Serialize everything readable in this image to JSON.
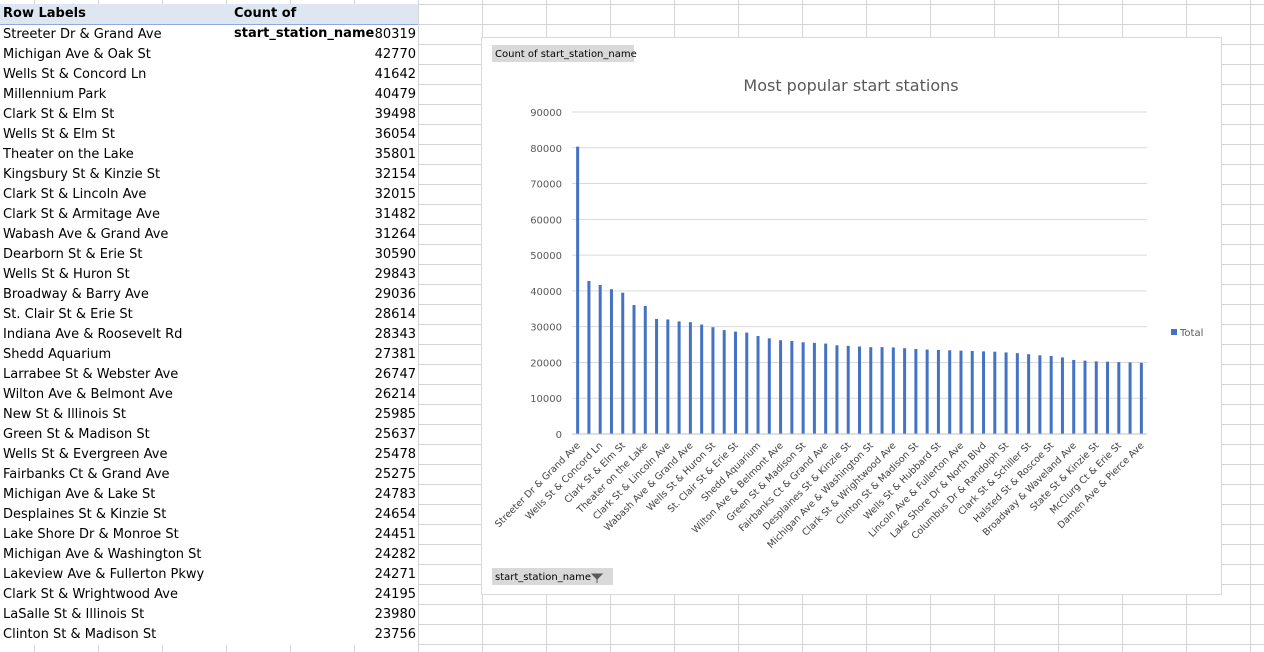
{
  "table": {
    "headers": [
      "Row Labels",
      "Count of start_station_name"
    ],
    "rows": [
      [
        "Streeter Dr & Grand Ave",
        80319
      ],
      [
        "Michigan Ave & Oak St",
        42770
      ],
      [
        "Wells St & Concord Ln",
        41642
      ],
      [
        "Millennium Park",
        40479
      ],
      [
        "Clark St & Elm St",
        39498
      ],
      [
        "Wells St & Elm St",
        36054
      ],
      [
        "Theater on the Lake",
        35801
      ],
      [
        "Kingsbury St & Kinzie St",
        32154
      ],
      [
        "Clark St & Lincoln Ave",
        32015
      ],
      [
        "Clark St & Armitage Ave",
        31482
      ],
      [
        "Wabash Ave & Grand Ave",
        31264
      ],
      [
        "Dearborn St & Erie St",
        30590
      ],
      [
        "Wells St & Huron St",
        29843
      ],
      [
        "Broadway & Barry Ave",
        29036
      ],
      [
        "St. Clair St & Erie St",
        28614
      ],
      [
        "Indiana Ave & Roosevelt Rd",
        28343
      ],
      [
        "Shedd Aquarium",
        27381
      ],
      [
        "Larrabee St & Webster Ave",
        26747
      ],
      [
        "Wilton Ave & Belmont Ave",
        26214
      ],
      [
        "New St & Illinois St",
        25985
      ],
      [
        "Green St & Madison St",
        25637
      ],
      [
        "Wells St & Evergreen Ave",
        25478
      ],
      [
        "Fairbanks Ct & Grand Ave",
        25275
      ],
      [
        "Michigan Ave & Lake St",
        24783
      ],
      [
        "Desplaines St & Kinzie St",
        24654
      ],
      [
        "Lake Shore Dr & Monroe St",
        24451
      ],
      [
        "Michigan Ave & Washington St",
        24282
      ],
      [
        "Lakeview Ave & Fullerton Pkwy",
        24271
      ],
      [
        "Clark St & Wrightwood Ave",
        24195
      ],
      [
        "LaSalle St & Illinois St",
        23980
      ],
      [
        "Clinton St & Madison St",
        23756
      ]
    ]
  },
  "chart_data": {
    "type": "bar",
    "title": "Most popular start stations",
    "field_button": "Count of start_station_name",
    "axis_button": "start_station_name",
    "categories": [
      "Streeter Dr & Grand Ave",
      null,
      "Wells St & Concord Ln",
      null,
      "Clark St & Elm St",
      null,
      "Theater on the Lake",
      null,
      "Clark St & Lincoln Ave",
      null,
      "Wabash Ave & Grand Ave",
      null,
      "Wells St & Huron St",
      null,
      "St. Clair St & Erie St",
      null,
      "Shedd Aquarium",
      null,
      "Wilton Ave & Belmont Ave",
      null,
      "Green St & Madison St",
      null,
      "Fairbanks Ct & Grand Ave",
      null,
      "Desplaines St & Kinzie St",
      null,
      "Michigan Ave & Washington St",
      null,
      "Clark St & Wrightwood Ave",
      null,
      "Clinton St & Madison St",
      null,
      "Wells St & Hubbard St",
      null,
      "Lincoln Ave & Fullerton Ave",
      null,
      "Lake Shore Dr & North Blvd",
      null,
      "Columbus Dr & Randolph St",
      null,
      "Clark St & Schiller St",
      null,
      "Halsted St & Roscoe St",
      null,
      "Broadway & Waveland Ave",
      null,
      "State St & Kinzie St",
      null,
      "McClurg Ct & Erie St",
      null,
      "Damen Ave & Pierce Ave"
    ],
    "series": [
      {
        "name": "Total",
        "color": "#4472c4",
        "values": [
          80319,
          42770,
          41642,
          40479,
          39498,
          36054,
          35801,
          32154,
          32015,
          31482,
          31264,
          30590,
          29843,
          29036,
          28614,
          28343,
          27381,
          26747,
          26214,
          25985,
          25637,
          25478,
          25275,
          24783,
          24654,
          24451,
          24282,
          24271,
          24195,
          23980,
          23756,
          23600,
          23500,
          23400,
          23300,
          23200,
          23100,
          23000,
          22800,
          22600,
          22300,
          22000,
          21800,
          21400,
          20700,
          20500,
          20300,
          20200,
          20100,
          20000,
          19900
        ]
      }
    ],
    "ylim": [
      0,
      90000
    ],
    "yticks": [
      0,
      10000,
      20000,
      30000,
      40000,
      50000,
      60000,
      70000,
      80000,
      90000
    ],
    "grid": true,
    "legend": "right"
  }
}
